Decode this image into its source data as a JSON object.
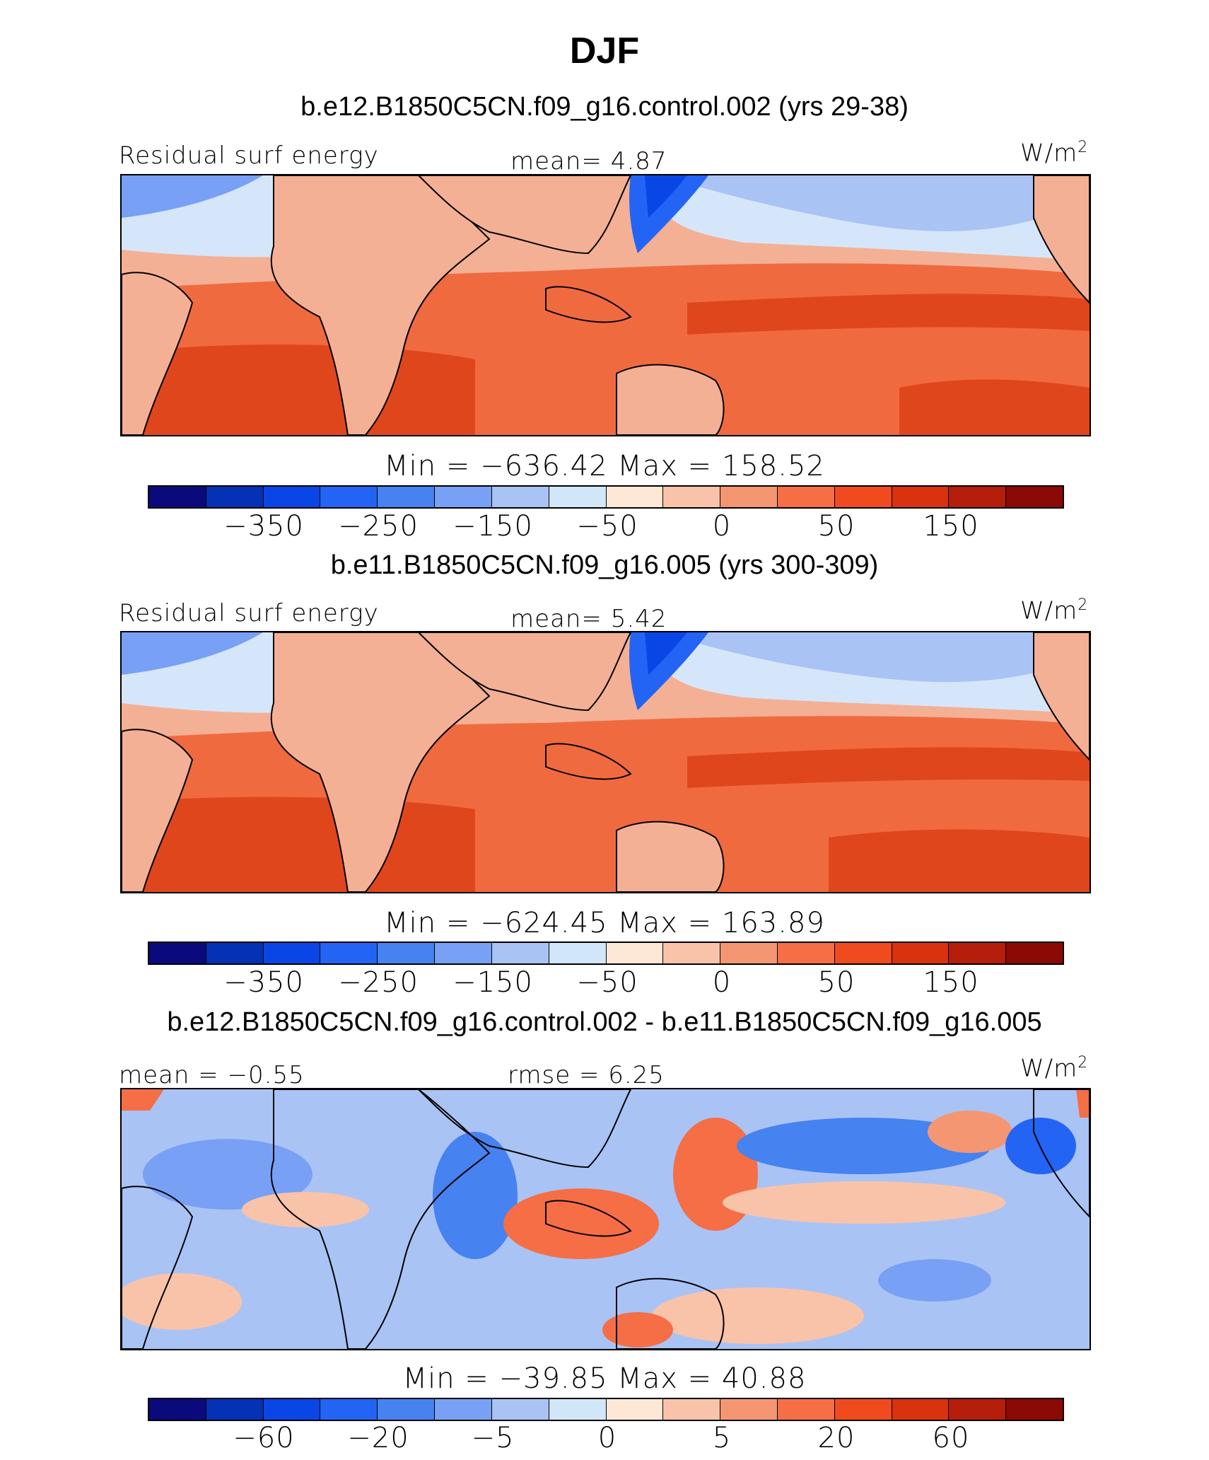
{
  "title": "DJF",
  "panels": [
    {
      "title": "b.e12.B1850C5CN.f09_g16.control.002 (yrs 29-38)",
      "left_label": "Residual surf energy",
      "center_label": "mean=   4.87",
      "units": "W/m",
      "units_exp": "2",
      "minmax": "Min = −636.42 Max = 158.52",
      "colorbar": {
        "colors": [
          "#0a0a7d",
          "#0532b4",
          "#0a46e6",
          "#2364f5",
          "#4682f0",
          "#78a0f5",
          "#aac3f5",
          "#d2e6fa",
          "#fde8d7",
          "#f9c3a9",
          "#f59673",
          "#f56e46",
          "#f04b1e",
          "#d8320f",
          "#b41e0a",
          "#8c0a05"
        ],
        "ticks": [
          "−350",
          "−250",
          "−150",
          "−50",
          "0",
          "50",
          "150"
        ]
      }
    },
    {
      "title": "b.e11.B1850C5CN.f09_g16.005 (yrs 300-309)",
      "left_label": "Residual surf energy",
      "center_label": "mean=   5.42",
      "units": "W/m",
      "units_exp": "2",
      "minmax": "Min = −624.45 Max = 163.89",
      "colorbar": {
        "colors": [
          "#0a0a7d",
          "#0532b4",
          "#0a46e6",
          "#2364f5",
          "#4682f0",
          "#78a0f5",
          "#aac3f5",
          "#d2e6fa",
          "#fde8d7",
          "#f9c3a9",
          "#f59673",
          "#f56e46",
          "#f04b1e",
          "#d8320f",
          "#b41e0a",
          "#8c0a05"
        ],
        "ticks": [
          "−350",
          "−250",
          "−150",
          "−50",
          "0",
          "50",
          "150"
        ]
      }
    },
    {
      "title": "b.e12.B1850C5CN.f09_g16.control.002 - b.e11.B1850C5CN.f09_g16.005",
      "left_label": "mean =  −0.55",
      "center_label": "rmse =    6.25",
      "units": "W/m",
      "units_exp": "2",
      "minmax": "Min = −39.85 Max =  40.88",
      "colorbar": {
        "colors": [
          "#0a0a7d",
          "#0532b4",
          "#0a46e6",
          "#2364f5",
          "#4682f0",
          "#78a0f5",
          "#aac3f5",
          "#d2e6fa",
          "#fde8d7",
          "#f9c3a9",
          "#f59673",
          "#f56e46",
          "#f04b1e",
          "#d8320f",
          "#b41e0a",
          "#8c0a05"
        ],
        "ticks": [
          "−60",
          "−20",
          "−5",
          "0",
          "5",
          "20",
          "60"
        ]
      }
    }
  ]
}
